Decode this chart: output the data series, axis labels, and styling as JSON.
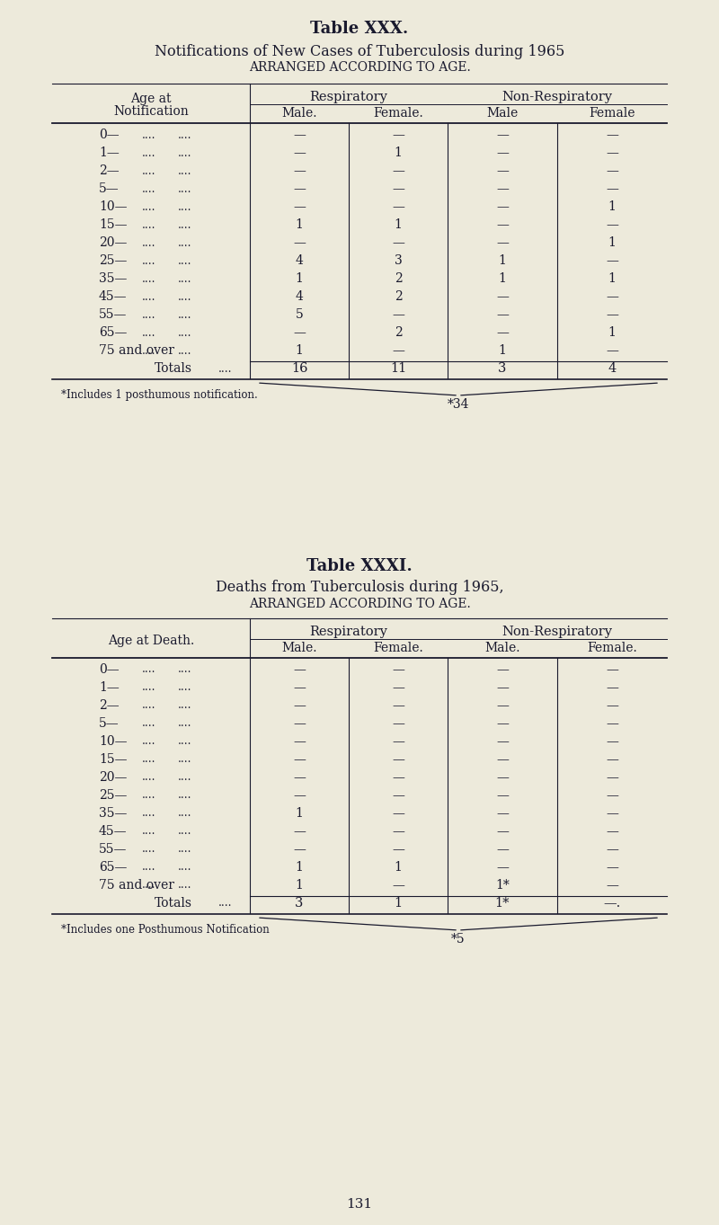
{
  "bg_color": "#edeadb",
  "text_color": "#1a1a2e",
  "page_num": "131",
  "table1": {
    "title": "Table XXX.",
    "subtitle1": "Notifications of New Cases of Tuberculosis during 1965",
    "subtitle2": "arranged according to age.",
    "header_left1": "Age at",
    "header_left2": "Notification",
    "col_group1": "Respiratory",
    "col_group2": "Non-Respiratory",
    "col_sub": [
      "Male.",
      "Female.",
      "Male",
      "Female"
    ],
    "age_labels": [
      "0—",
      "1—",
      "2—",
      "5—",
      "10—",
      "15—",
      "20—",
      "25—",
      "35—",
      "45—",
      "55—",
      "65—",
      "75 and over"
    ],
    "data": [
      [
        "—",
        "—",
        "—",
        "—"
      ],
      [
        "—",
        "1",
        "—",
        "—"
      ],
      [
        "—",
        "—",
        "—",
        "—"
      ],
      [
        "—",
        "—",
        "—",
        "—"
      ],
      [
        "—",
        "—",
        "—",
        "1"
      ],
      [
        "1",
        "1",
        "—",
        "—"
      ],
      [
        "—",
        "—",
        "—",
        "1"
      ],
      [
        "4",
        "3",
        "1",
        "—"
      ],
      [
        "1",
        "2",
        "1",
        "1"
      ],
      [
        "4",
        "2",
        "—",
        "—"
      ],
      [
        "5",
        "—",
        "—",
        "—"
      ],
      [
        "—",
        "2",
        "—",
        "1"
      ],
      [
        "1",
        "—",
        "1",
        "—"
      ]
    ],
    "totals": [
      "16",
      "11",
      "3",
      "4"
    ],
    "footnote": "*Includes 1 posthumous notification.",
    "brace_total": "*34"
  },
  "table2": {
    "title": "Table XXXI.",
    "subtitle1": "Deaths from Tuberculosis during 1965,",
    "subtitle2": "arranged according to age.",
    "header_left": "Age at Death.",
    "col_group1": "Respiratory",
    "col_group2": "Non-Respiratory",
    "col_sub": [
      "Male.",
      "Female.",
      "Male.",
      "Female."
    ],
    "age_labels": [
      "0—",
      "1—",
      "2—",
      "5—",
      "10—",
      "15—",
      "20—",
      "25—",
      "35—",
      "45—",
      "55—",
      "65—",
      "75 and over"
    ],
    "data": [
      [
        "—",
        "—",
        "—",
        "—"
      ],
      [
        "—",
        "—",
        "—",
        "—"
      ],
      [
        "—",
        "—",
        "—",
        "—"
      ],
      [
        "—",
        "—",
        "—",
        "—"
      ],
      [
        "—",
        "—",
        "—",
        "—"
      ],
      [
        "—",
        "—",
        "—",
        "—"
      ],
      [
        "—",
        "—",
        "—",
        "—"
      ],
      [
        "—",
        "—",
        "—",
        "—"
      ],
      [
        "1",
        "—",
        "—",
        "—"
      ],
      [
        "—",
        "—",
        "—",
        "—"
      ],
      [
        "—",
        "—",
        "—",
        "—"
      ],
      [
        "1",
        "1",
        "—",
        "—"
      ],
      [
        "1",
        "—",
        "1*",
        "—"
      ]
    ],
    "totals": [
      "3",
      "1",
      "1*",
      "—."
    ],
    "footnote": "*Includes one Posthumous Notification",
    "brace_total": "*5"
  }
}
